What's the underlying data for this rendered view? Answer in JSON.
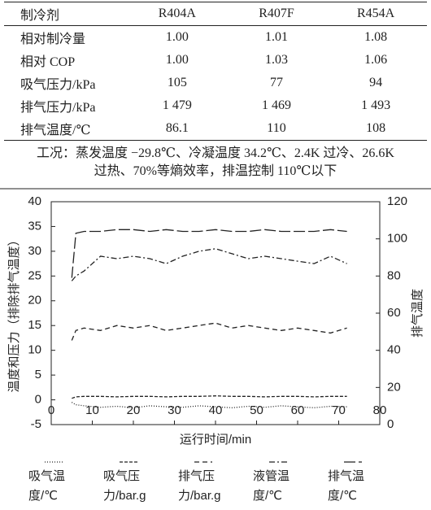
{
  "table": {
    "header": [
      "制冷剂",
      "R404A",
      "R407F",
      "R454A"
    ],
    "rows": [
      [
        "相对制冷量",
        "1.00",
        "1.01",
        "1.08"
      ],
      [
        "相对 COP",
        "1.00",
        "1.03",
        "1.06"
      ],
      [
        "吸气压力/kPa",
        "105",
        "77",
        "94"
      ],
      [
        "排气压力/kPa",
        "1 479",
        "1 469",
        "1 493"
      ],
      [
        "排气温度/℃",
        "86.1",
        "110",
        "108"
      ]
    ],
    "note": "工况：蒸发温度 −29.8℃、冷凝温度 34.2℃、2.4K 过冷、26.6K 过热、70%等熵效率，排温控制 110℃以下"
  },
  "chart_data": {
    "type": "line",
    "xlabel": "运行时间/min",
    "ylabel": "温度和压力（排除排气温度）",
    "y2label": "排气温度",
    "x": [
      5,
      6,
      8,
      12,
      16,
      20,
      24,
      28,
      32,
      36,
      40,
      44,
      48,
      52,
      56,
      60,
      64,
      68,
      72
    ],
    "xlim": [
      0,
      80
    ],
    "xticks": [
      0,
      10,
      20,
      30,
      40,
      50,
      60,
      70,
      80
    ],
    "ylim": [
      -5,
      40
    ],
    "yticks": [
      -5,
      0,
      5,
      10,
      15,
      20,
      25,
      30,
      35,
      40
    ],
    "y2lim": [
      0,
      120
    ],
    "y2ticks": [
      0,
      20,
      40,
      60,
      80,
      100,
      120
    ],
    "series": [
      {
        "name": "吸气温度/℃",
        "color": "#222222",
        "dash": "1,2",
        "values": [
          -0.5,
          -1,
          -1.2,
          -1.5,
          -1.3,
          -1.6,
          -1.2,
          -1.4,
          -1.5,
          -1.2,
          -1.4,
          -1.6,
          -1.3,
          -1.5,
          -1.2,
          -1.4,
          -1.6,
          -1.3,
          -1.4
        ]
      },
      {
        "name": "吸气压力/bar.g",
        "color": "#222222",
        "dash": "4,2",
        "values": [
          0.3,
          0.6,
          0.7,
          0.7,
          0.6,
          0.7,
          0.7,
          0.6,
          0.7,
          0.7,
          0.8,
          0.7,
          0.7,
          0.6,
          0.7,
          0.7,
          0.6,
          0.7,
          0.7
        ]
      },
      {
        "name": "排气压力/bar.g",
        "color": "#222222",
        "dash": "6,4",
        "values": [
          12,
          14,
          14.5,
          14,
          15,
          14.5,
          15,
          14,
          14.5,
          15,
          15.5,
          14.5,
          15,
          14.5,
          14,
          14.5,
          14,
          13.5,
          14.5
        ]
      },
      {
        "name": "液管温度/℃",
        "color": "#222222",
        "dash": "7,3,2,3",
        "values": [
          24,
          25,
          26,
          29,
          28.5,
          29,
          28.5,
          27.5,
          29,
          30,
          30.5,
          29.5,
          28.5,
          29,
          28.5,
          28,
          27.5,
          29,
          27.5
        ]
      },
      {
        "name": "排气温度/℃",
        "color": "#222222",
        "dash": "14,4",
        "axis": "y2",
        "values": [
          79,
          103,
          104,
          104,
          105,
          105,
          104,
          105,
          104,
          104,
          105,
          104,
          104,
          105,
          104,
          104,
          104,
          105,
          104
        ]
      }
    ]
  }
}
